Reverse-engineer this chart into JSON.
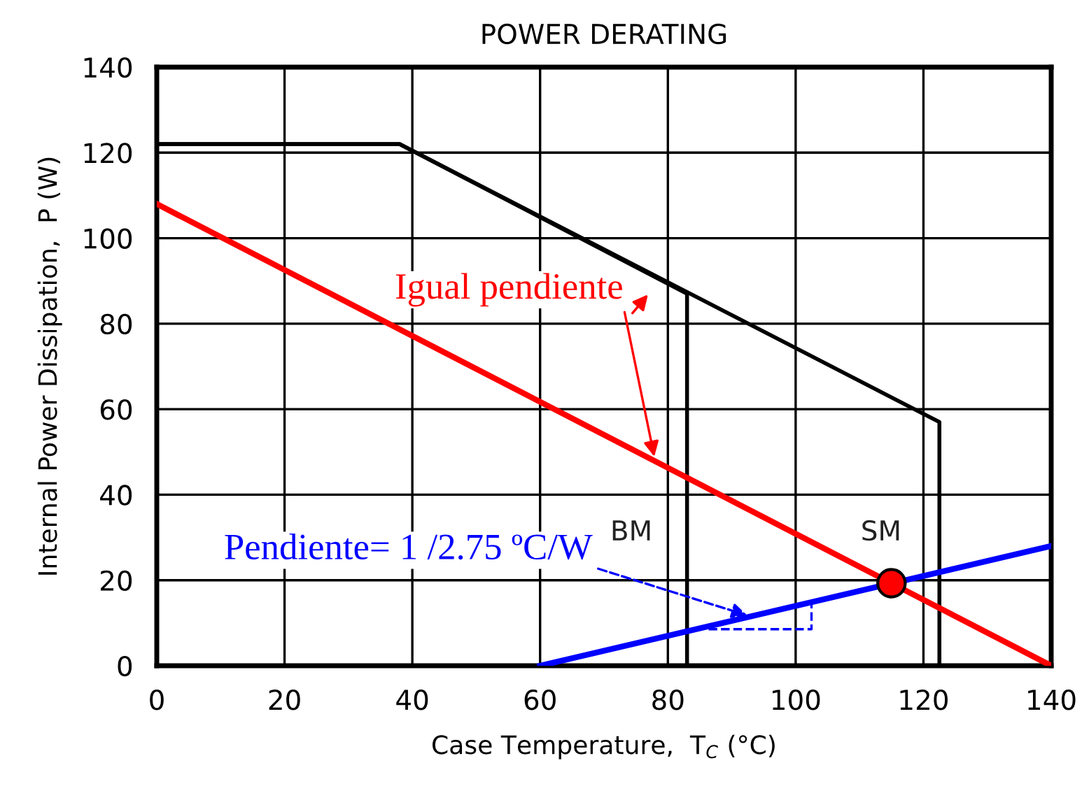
{
  "chart_data": {
    "type": "line",
    "title": "POWER DERATING",
    "xlabel": "Case Temperature,  T$_{C}$ (°C)",
    "ylabel": "Internal Power Dissipation,  P (W)",
    "xlim": [
      0,
      140
    ],
    "ylim": [
      0,
      140
    ],
    "xticks": [
      0,
      20,
      40,
      60,
      80,
      100,
      120,
      140
    ],
    "yticks": [
      0,
      20,
      40,
      60,
      80,
      100,
      120,
      140
    ],
    "grid": true,
    "legend": false,
    "series": [
      {
        "color": "#000000",
        "x": [
          0,
          38,
          83,
          83
        ],
        "values": [
          122,
          122,
          87,
          0
        ]
      },
      {
        "color": "#000000",
        "x": [
          0,
          38,
          122.5,
          122.5
        ],
        "values": [
          122,
          122,
          57,
          0
        ]
      },
      {
        "color": "#ff0000",
        "x": [
          0,
          140
        ],
        "values": [
          108,
          0
        ]
      },
      {
        "color": "#0000ff",
        "x": [
          60,
          140
        ],
        "values": [
          0,
          28
        ]
      },
      {
        "type": "scatter",
        "marker": "circle",
        "color": "#ff0000",
        "x": [
          115
        ],
        "values": [
          19.3
        ]
      }
    ],
    "annotations": [
      {
        "text": "Igual pendiente",
        "x": 78,
        "y": 48
      },
      {
        "text": "Pendiente= 1 /2.75 ºC/W",
        "x": 93,
        "y": 11.5
      },
      "BM",
      "SM"
    ]
  }
}
